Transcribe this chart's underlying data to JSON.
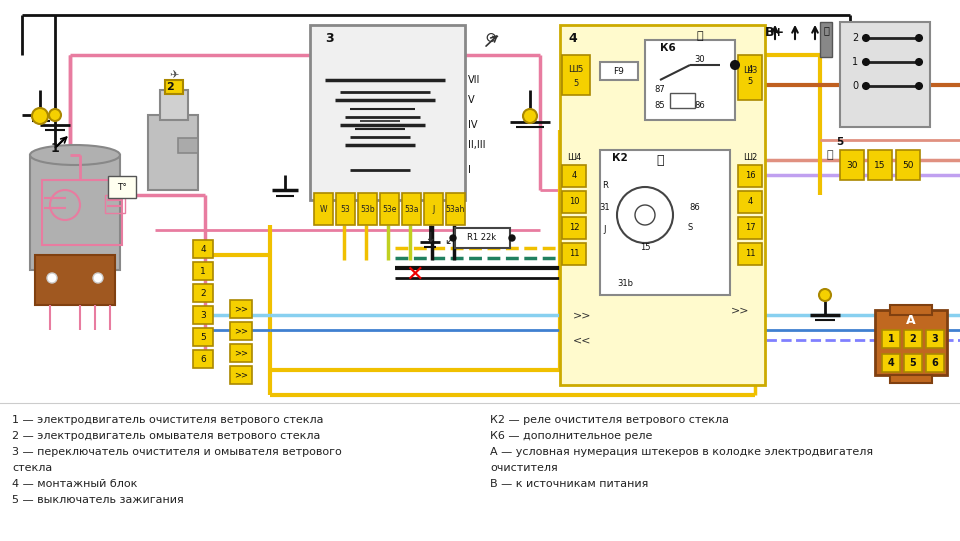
{
  "bg_color": "#ffffff",
  "legend_items_left": [
    "1 — электродвигатель очистителя ветрового стекла",
    "2 — электродвигатель омывателя ветрового стекла",
    "3 — переключатель очистителя и омывателя ветрового",
    "стекла",
    "4 — монтажный блок",
    "5 — выключатель зажигания"
  ],
  "legend_items_right": [
    "К2 — реле очистителя ветрового стекла",
    "К6 — дополнительное реле",
    "А — условная нумерация штекеров в колодке электродвигателя",
    "очистителя",
    "В — к источникам питания"
  ],
  "wires": {
    "pink": "#e87ca0",
    "yellow": "#f0c000",
    "green": "#20a050",
    "blue": "#4080d0",
    "black": "#111111",
    "gray": "#888888",
    "brown": "#c06020",
    "cyan": "#60c0e0",
    "red": "#dd0000",
    "salmon": "#e09080",
    "dgreen": "#208060"
  }
}
